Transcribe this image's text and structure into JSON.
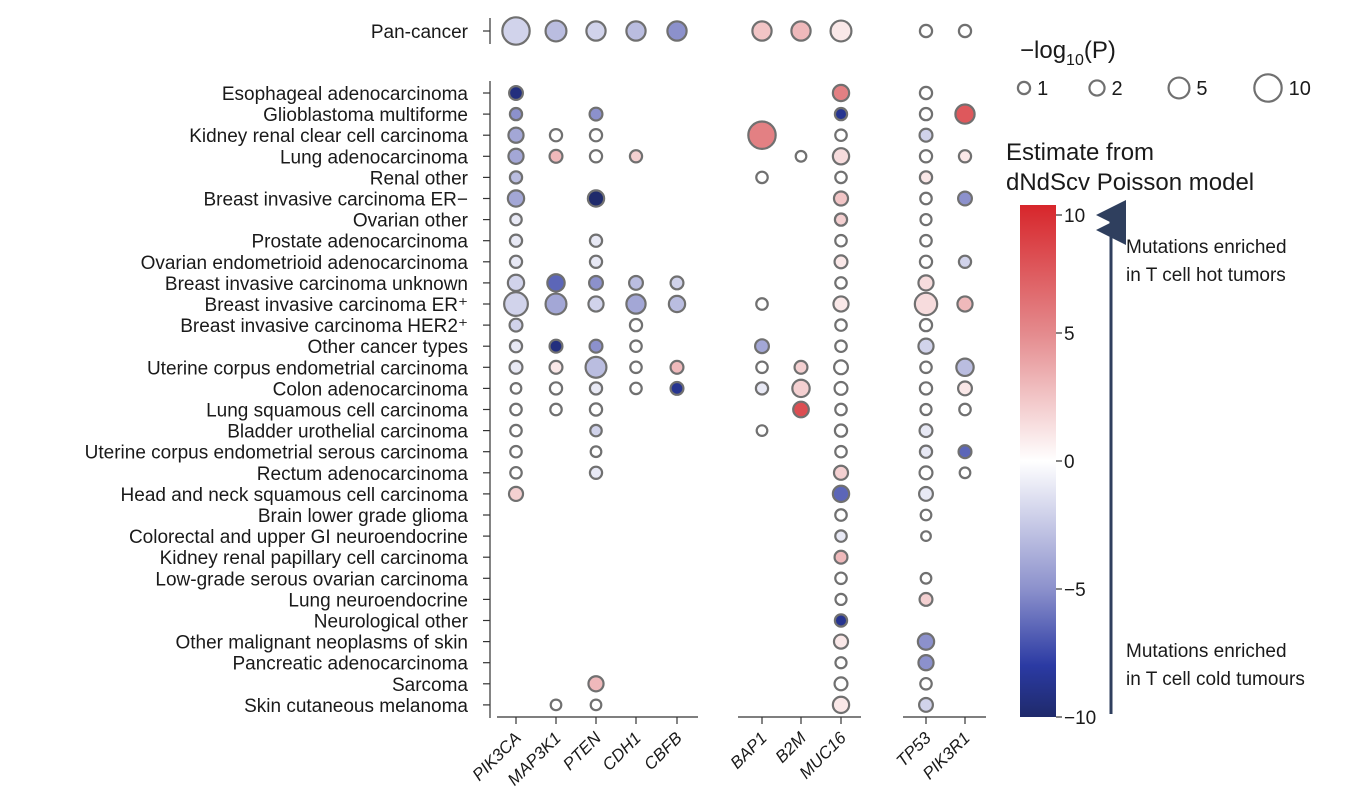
{
  "chart_data": {
    "type": "scatter",
    "subtype": "dot-matrix",
    "genes": [
      "PIK3CA",
      "MAP3K1",
      "PTEN",
      "CDH1",
      "CBFB",
      "BAP1",
      "B2M",
      "MUC16",
      "TP53",
      "PIK3R1"
    ],
    "gene_groups": [
      [
        0,
        1,
        2,
        3,
        4
      ],
      [
        5,
        6,
        7
      ],
      [
        8,
        9
      ]
    ],
    "pan_cancer_label": "Pan-cancer",
    "cancer_types": [
      "Esophageal adenocarcinoma",
      "Glioblastoma multiforme",
      "Kidney renal clear cell carcinoma",
      "Lung adenocarcinoma",
      "Renal other",
      "Breast invasive carcinoma ER−",
      "Ovarian other",
      "Prostate adenocarcinoma",
      "Ovarian endometrioid adenocarcinoma",
      "Breast invasive carcinoma unknown",
      "Breast invasive carcinoma ER⁺",
      "Breast invasive carcinoma HER2⁺",
      "Other cancer types",
      "Uterine corpus endometrial carcinoma",
      "Colon adenocarcinoma",
      "Lung squamous cell carcinoma",
      "Bladder urothelial carcinoma",
      "Uterine corpus endometrial serous carcinoma",
      "Rectum adenocarcinoma",
      "Head and neck squamous cell carcinoma",
      "Brain lower grade glioma",
      "Colorectal and upper GI neuroendocrine",
      "Kidney renal papillary cell carcinoma",
      "Low-grade serous ovarian carcinoma",
      "Lung neuroendocrine",
      "Neurological other",
      "Other malignant neoplasms of skin",
      "Pancreatic adenocarcinoma",
      "Sarcoma",
      "Skin cutaneous melanoma"
    ],
    "size_legend": {
      "title_prefix": "−log",
      "title_sub": "10",
      "title_suffix": "(P)",
      "values": [
        1,
        2,
        5,
        10
      ],
      "labels": [
        "1",
        "2",
        "5",
        "10"
      ]
    },
    "color_legend": {
      "title_line1": "Estimate from",
      "title_line2": "dNdScv Poisson model",
      "range": [
        -10,
        10
      ],
      "ticks": [
        10,
        5,
        0,
        -5,
        -10
      ],
      "tick_labels": [
        "10",
        "5",
        "0",
        "−5",
        "−10"
      ],
      "colors": {
        "low": "#1f2a6b",
        "mid": "#ffffff",
        "high": "#d7262b"
      }
    },
    "annotations": {
      "hot_line1": "Mutations enriched",
      "hot_line2": "in T cell hot tumors",
      "cold_line1": "Mutations enriched",
      "cold_line2": "in T cell cold tumours"
    },
    "points": [
      {
        "row": -1,
        "gene": 0,
        "p": 10,
        "e": -2
      },
      {
        "row": -1,
        "gene": 1,
        "p": 5,
        "e": -3
      },
      {
        "row": -1,
        "gene": 2,
        "p": 4,
        "e": -2
      },
      {
        "row": -1,
        "gene": 3,
        "p": 4,
        "e": -3
      },
      {
        "row": -1,
        "gene": 4,
        "p": 4,
        "e": -5
      },
      {
        "row": -1,
        "gene": 5,
        "p": 4,
        "e": 2.5
      },
      {
        "row": -1,
        "gene": 6,
        "p": 4,
        "e": 3
      },
      {
        "row": -1,
        "gene": 7,
        "p": 5,
        "e": 1
      },
      {
        "row": -1,
        "gene": 8,
        "p": 1,
        "e": 0
      },
      {
        "row": -1,
        "gene": 9,
        "p": 1,
        "e": 0
      },
      {
        "row": 0,
        "gene": 0,
        "p": 1.5,
        "e": -9
      },
      {
        "row": 0,
        "gene": 7,
        "p": 2.5,
        "e": 5.5
      },
      {
        "row": 0,
        "gene": 8,
        "p": 1,
        "e": 0
      },
      {
        "row": 1,
        "gene": 0,
        "p": 1,
        "e": -5
      },
      {
        "row": 1,
        "gene": 2,
        "p": 1.2,
        "e": -5
      },
      {
        "row": 1,
        "gene": 7,
        "p": 1,
        "e": -8
      },
      {
        "row": 1,
        "gene": 8,
        "p": 1,
        "e": 0
      },
      {
        "row": 1,
        "gene": 9,
        "p": 4,
        "e": 7.5
      },
      {
        "row": 2,
        "gene": 0,
        "p": 2,
        "e": -4
      },
      {
        "row": 2,
        "gene": 1,
        "p": 1,
        "e": 0
      },
      {
        "row": 2,
        "gene": 2,
        "p": 1,
        "e": 0
      },
      {
        "row": 2,
        "gene": 5,
        "p": 10,
        "e": 5.5
      },
      {
        "row": 2,
        "gene": 7,
        "p": 0.8,
        "e": 0
      },
      {
        "row": 2,
        "gene": 8,
        "p": 1.2,
        "e": -2
      },
      {
        "row": 3,
        "gene": 0,
        "p": 2,
        "e": -4
      },
      {
        "row": 3,
        "gene": 1,
        "p": 1.2,
        "e": 3
      },
      {
        "row": 3,
        "gene": 2,
        "p": 1,
        "e": 0
      },
      {
        "row": 3,
        "gene": 3,
        "p": 1,
        "e": 2
      },
      {
        "row": 3,
        "gene": 6,
        "p": 0.6,
        "e": 0
      },
      {
        "row": 3,
        "gene": 7,
        "p": 2.5,
        "e": 1.5
      },
      {
        "row": 3,
        "gene": 8,
        "p": 1,
        "e": 0
      },
      {
        "row": 3,
        "gene": 9,
        "p": 1,
        "e": 1
      },
      {
        "row": 4,
        "gene": 0,
        "p": 1,
        "e": -3
      },
      {
        "row": 4,
        "gene": 5,
        "p": 0.8,
        "e": 0
      },
      {
        "row": 4,
        "gene": 7,
        "p": 0.8,
        "e": 0
      },
      {
        "row": 4,
        "gene": 8,
        "p": 1,
        "e": 1
      },
      {
        "row": 5,
        "gene": 0,
        "p": 2.5,
        "e": -4
      },
      {
        "row": 5,
        "gene": 2,
        "p": 2.5,
        "e": -10
      },
      {
        "row": 5,
        "gene": 7,
        "p": 1.6,
        "e": 2.5
      },
      {
        "row": 5,
        "gene": 8,
        "p": 0.8,
        "e": 0
      },
      {
        "row": 5,
        "gene": 9,
        "p": 1.5,
        "e": -5
      },
      {
        "row": 6,
        "gene": 0,
        "p": 0.8,
        "e": -1
      },
      {
        "row": 6,
        "gene": 7,
        "p": 1,
        "e": 2
      },
      {
        "row": 6,
        "gene": 8,
        "p": 0.7,
        "e": 0
      },
      {
        "row": 7,
        "gene": 0,
        "p": 1,
        "e": -1
      },
      {
        "row": 7,
        "gene": 2,
        "p": 1,
        "e": -1
      },
      {
        "row": 7,
        "gene": 7,
        "p": 0.8,
        "e": 0
      },
      {
        "row": 7,
        "gene": 8,
        "p": 0.8,
        "e": 0
      },
      {
        "row": 8,
        "gene": 0,
        "p": 1,
        "e": -1
      },
      {
        "row": 8,
        "gene": 2,
        "p": 1,
        "e": -1
      },
      {
        "row": 8,
        "gene": 7,
        "p": 1.2,
        "e": 1
      },
      {
        "row": 8,
        "gene": 8,
        "p": 1,
        "e": 0
      },
      {
        "row": 8,
        "gene": 9,
        "p": 1,
        "e": -2
      },
      {
        "row": 9,
        "gene": 0,
        "p": 2.5,
        "e": -2
      },
      {
        "row": 9,
        "gene": 1,
        "p": 3,
        "e": -6
      },
      {
        "row": 9,
        "gene": 2,
        "p": 1.5,
        "e": -5
      },
      {
        "row": 9,
        "gene": 3,
        "p": 1.5,
        "e": -3
      },
      {
        "row": 9,
        "gene": 4,
        "p": 1.2,
        "e": -2
      },
      {
        "row": 9,
        "gene": 7,
        "p": 0.8,
        "e": 0
      },
      {
        "row": 9,
        "gene": 8,
        "p": 2,
        "e": 1.5
      },
      {
        "row": 10,
        "gene": 0,
        "p": 7,
        "e": -2
      },
      {
        "row": 10,
        "gene": 1,
        "p": 5,
        "e": -4
      },
      {
        "row": 10,
        "gene": 2,
        "p": 2,
        "e": -2
      },
      {
        "row": 10,
        "gene": 3,
        "p": 4,
        "e": -4
      },
      {
        "row": 10,
        "gene": 4,
        "p": 2.5,
        "e": -3
      },
      {
        "row": 10,
        "gene": 5,
        "p": 0.8,
        "e": 0
      },
      {
        "row": 10,
        "gene": 7,
        "p": 2,
        "e": 1
      },
      {
        "row": 10,
        "gene": 8,
        "p": 6,
        "e": 1.5
      },
      {
        "row": 10,
        "gene": 9,
        "p": 2,
        "e": 3
      },
      {
        "row": 11,
        "gene": 0,
        "p": 1.2,
        "e": -2
      },
      {
        "row": 11,
        "gene": 3,
        "p": 1,
        "e": 0
      },
      {
        "row": 11,
        "gene": 7,
        "p": 0.8,
        "e": 0
      },
      {
        "row": 11,
        "gene": 8,
        "p": 1,
        "e": 0
      },
      {
        "row": 12,
        "gene": 0,
        "p": 1,
        "e": -1
      },
      {
        "row": 12,
        "gene": 1,
        "p": 1.2,
        "e": -9
      },
      {
        "row": 12,
        "gene": 2,
        "p": 1.2,
        "e": -5
      },
      {
        "row": 12,
        "gene": 3,
        "p": 0.8,
        "e": 0
      },
      {
        "row": 12,
        "gene": 5,
        "p": 1.5,
        "e": -4
      },
      {
        "row": 12,
        "gene": 7,
        "p": 0.8,
        "e": 0
      },
      {
        "row": 12,
        "gene": 8,
        "p": 2,
        "e": -2
      },
      {
        "row": 13,
        "gene": 0,
        "p": 1.2,
        "e": -1
      },
      {
        "row": 13,
        "gene": 1,
        "p": 1.2,
        "e": 1
      },
      {
        "row": 13,
        "gene": 2,
        "p": 5,
        "e": -3
      },
      {
        "row": 13,
        "gene": 3,
        "p": 0.8,
        "e": 0
      },
      {
        "row": 13,
        "gene": 4,
        "p": 1.2,
        "e": 3
      },
      {
        "row": 13,
        "gene": 5,
        "p": 0.8,
        "e": 0
      },
      {
        "row": 13,
        "gene": 6,
        "p": 1.2,
        "e": 2
      },
      {
        "row": 13,
        "gene": 7,
        "p": 1.5,
        "e": 0
      },
      {
        "row": 13,
        "gene": 8,
        "p": 0.8,
        "e": 0
      },
      {
        "row": 13,
        "gene": 9,
        "p": 3,
        "e": -3
      },
      {
        "row": 14,
        "gene": 0,
        "p": 0.6,
        "e": 0
      },
      {
        "row": 14,
        "gene": 1,
        "p": 1,
        "e": 0
      },
      {
        "row": 14,
        "gene": 2,
        "p": 1,
        "e": -1
      },
      {
        "row": 14,
        "gene": 3,
        "p": 0.8,
        "e": 0
      },
      {
        "row": 14,
        "gene": 4,
        "p": 1.2,
        "e": -8
      },
      {
        "row": 14,
        "gene": 5,
        "p": 1,
        "e": -1
      },
      {
        "row": 14,
        "gene": 6,
        "p": 3,
        "e": 2
      },
      {
        "row": 14,
        "gene": 7,
        "p": 1.2,
        "e": 0
      },
      {
        "row": 14,
        "gene": 8,
        "p": 1,
        "e": 0
      },
      {
        "row": 14,
        "gene": 9,
        "p": 1.5,
        "e": 1
      },
      {
        "row": 15,
        "gene": 0,
        "p": 0.8,
        "e": 0
      },
      {
        "row": 15,
        "gene": 1,
        "p": 0.8,
        "e": 0
      },
      {
        "row": 15,
        "gene": 2,
        "p": 1,
        "e": 0
      },
      {
        "row": 15,
        "gene": 6,
        "p": 2.2,
        "e": 8
      },
      {
        "row": 15,
        "gene": 7,
        "p": 0.8,
        "e": 0
      },
      {
        "row": 15,
        "gene": 8,
        "p": 0.7,
        "e": 0
      },
      {
        "row": 15,
        "gene": 9,
        "p": 0.8,
        "e": 0
      },
      {
        "row": 16,
        "gene": 0,
        "p": 0.8,
        "e": 0
      },
      {
        "row": 16,
        "gene": 2,
        "p": 0.8,
        "e": -2
      },
      {
        "row": 16,
        "gene": 5,
        "p": 0.6,
        "e": 0
      },
      {
        "row": 16,
        "gene": 7,
        "p": 1,
        "e": 0
      },
      {
        "row": 16,
        "gene": 8,
        "p": 1.2,
        "e": -1
      },
      {
        "row": 17,
        "gene": 0,
        "p": 0.8,
        "e": 0
      },
      {
        "row": 17,
        "gene": 2,
        "p": 0.6,
        "e": 0
      },
      {
        "row": 17,
        "gene": 7,
        "p": 0.8,
        "e": 0
      },
      {
        "row": 17,
        "gene": 8,
        "p": 1,
        "e": -1
      },
      {
        "row": 17,
        "gene": 9,
        "p": 1.2,
        "e": -6
      },
      {
        "row": 18,
        "gene": 0,
        "p": 0.8,
        "e": 0
      },
      {
        "row": 18,
        "gene": 2,
        "p": 1,
        "e": -1
      },
      {
        "row": 18,
        "gene": 7,
        "p": 1.6,
        "e": 2
      },
      {
        "row": 18,
        "gene": 8,
        "p": 1.2,
        "e": 0
      },
      {
        "row": 18,
        "gene": 9,
        "p": 0.6,
        "e": 0
      },
      {
        "row": 19,
        "gene": 0,
        "p": 1.6,
        "e": 2
      },
      {
        "row": 19,
        "gene": 7,
        "p": 2.5,
        "e": -6
      },
      {
        "row": 19,
        "gene": 8,
        "p": 1.5,
        "e": -1
      },
      {
        "row": 20,
        "gene": 7,
        "p": 0.8,
        "e": 0
      },
      {
        "row": 20,
        "gene": 8,
        "p": 0.6,
        "e": 0
      },
      {
        "row": 21,
        "gene": 7,
        "p": 0.8,
        "e": -1
      },
      {
        "row": 21,
        "gene": 8,
        "p": 0.4,
        "e": 0
      },
      {
        "row": 22,
        "gene": 7,
        "p": 1.2,
        "e": 3
      },
      {
        "row": 23,
        "gene": 7,
        "p": 0.8,
        "e": 0
      },
      {
        "row": 23,
        "gene": 8,
        "p": 0.6,
        "e": 0
      },
      {
        "row": 24,
        "gene": 7,
        "p": 0.7,
        "e": 0
      },
      {
        "row": 24,
        "gene": 8,
        "p": 1.2,
        "e": 2
      },
      {
        "row": 25,
        "gene": 7,
        "p": 1,
        "e": -8
      },
      {
        "row": 26,
        "gene": 7,
        "p": 1.6,
        "e": 1
      },
      {
        "row": 26,
        "gene": 8,
        "p": 2.5,
        "e": -5
      },
      {
        "row": 27,
        "gene": 7,
        "p": 0.7,
        "e": 0
      },
      {
        "row": 27,
        "gene": 8,
        "p": 2,
        "e": -5
      },
      {
        "row": 28,
        "gene": 2,
        "p": 2,
        "e": 3
      },
      {
        "row": 28,
        "gene": 7,
        "p": 1.2,
        "e": 0
      },
      {
        "row": 28,
        "gene": 8,
        "p": 0.8,
        "e": 0
      },
      {
        "row": 29,
        "gene": 1,
        "p": 0.6,
        "e": 0
      },
      {
        "row": 29,
        "gene": 2,
        "p": 0.6,
        "e": 0
      },
      {
        "row": 29,
        "gene": 7,
        "p": 2.5,
        "e": 1
      },
      {
        "row": 29,
        "gene": 8,
        "p": 1.5,
        "e": -2
      }
    ]
  }
}
